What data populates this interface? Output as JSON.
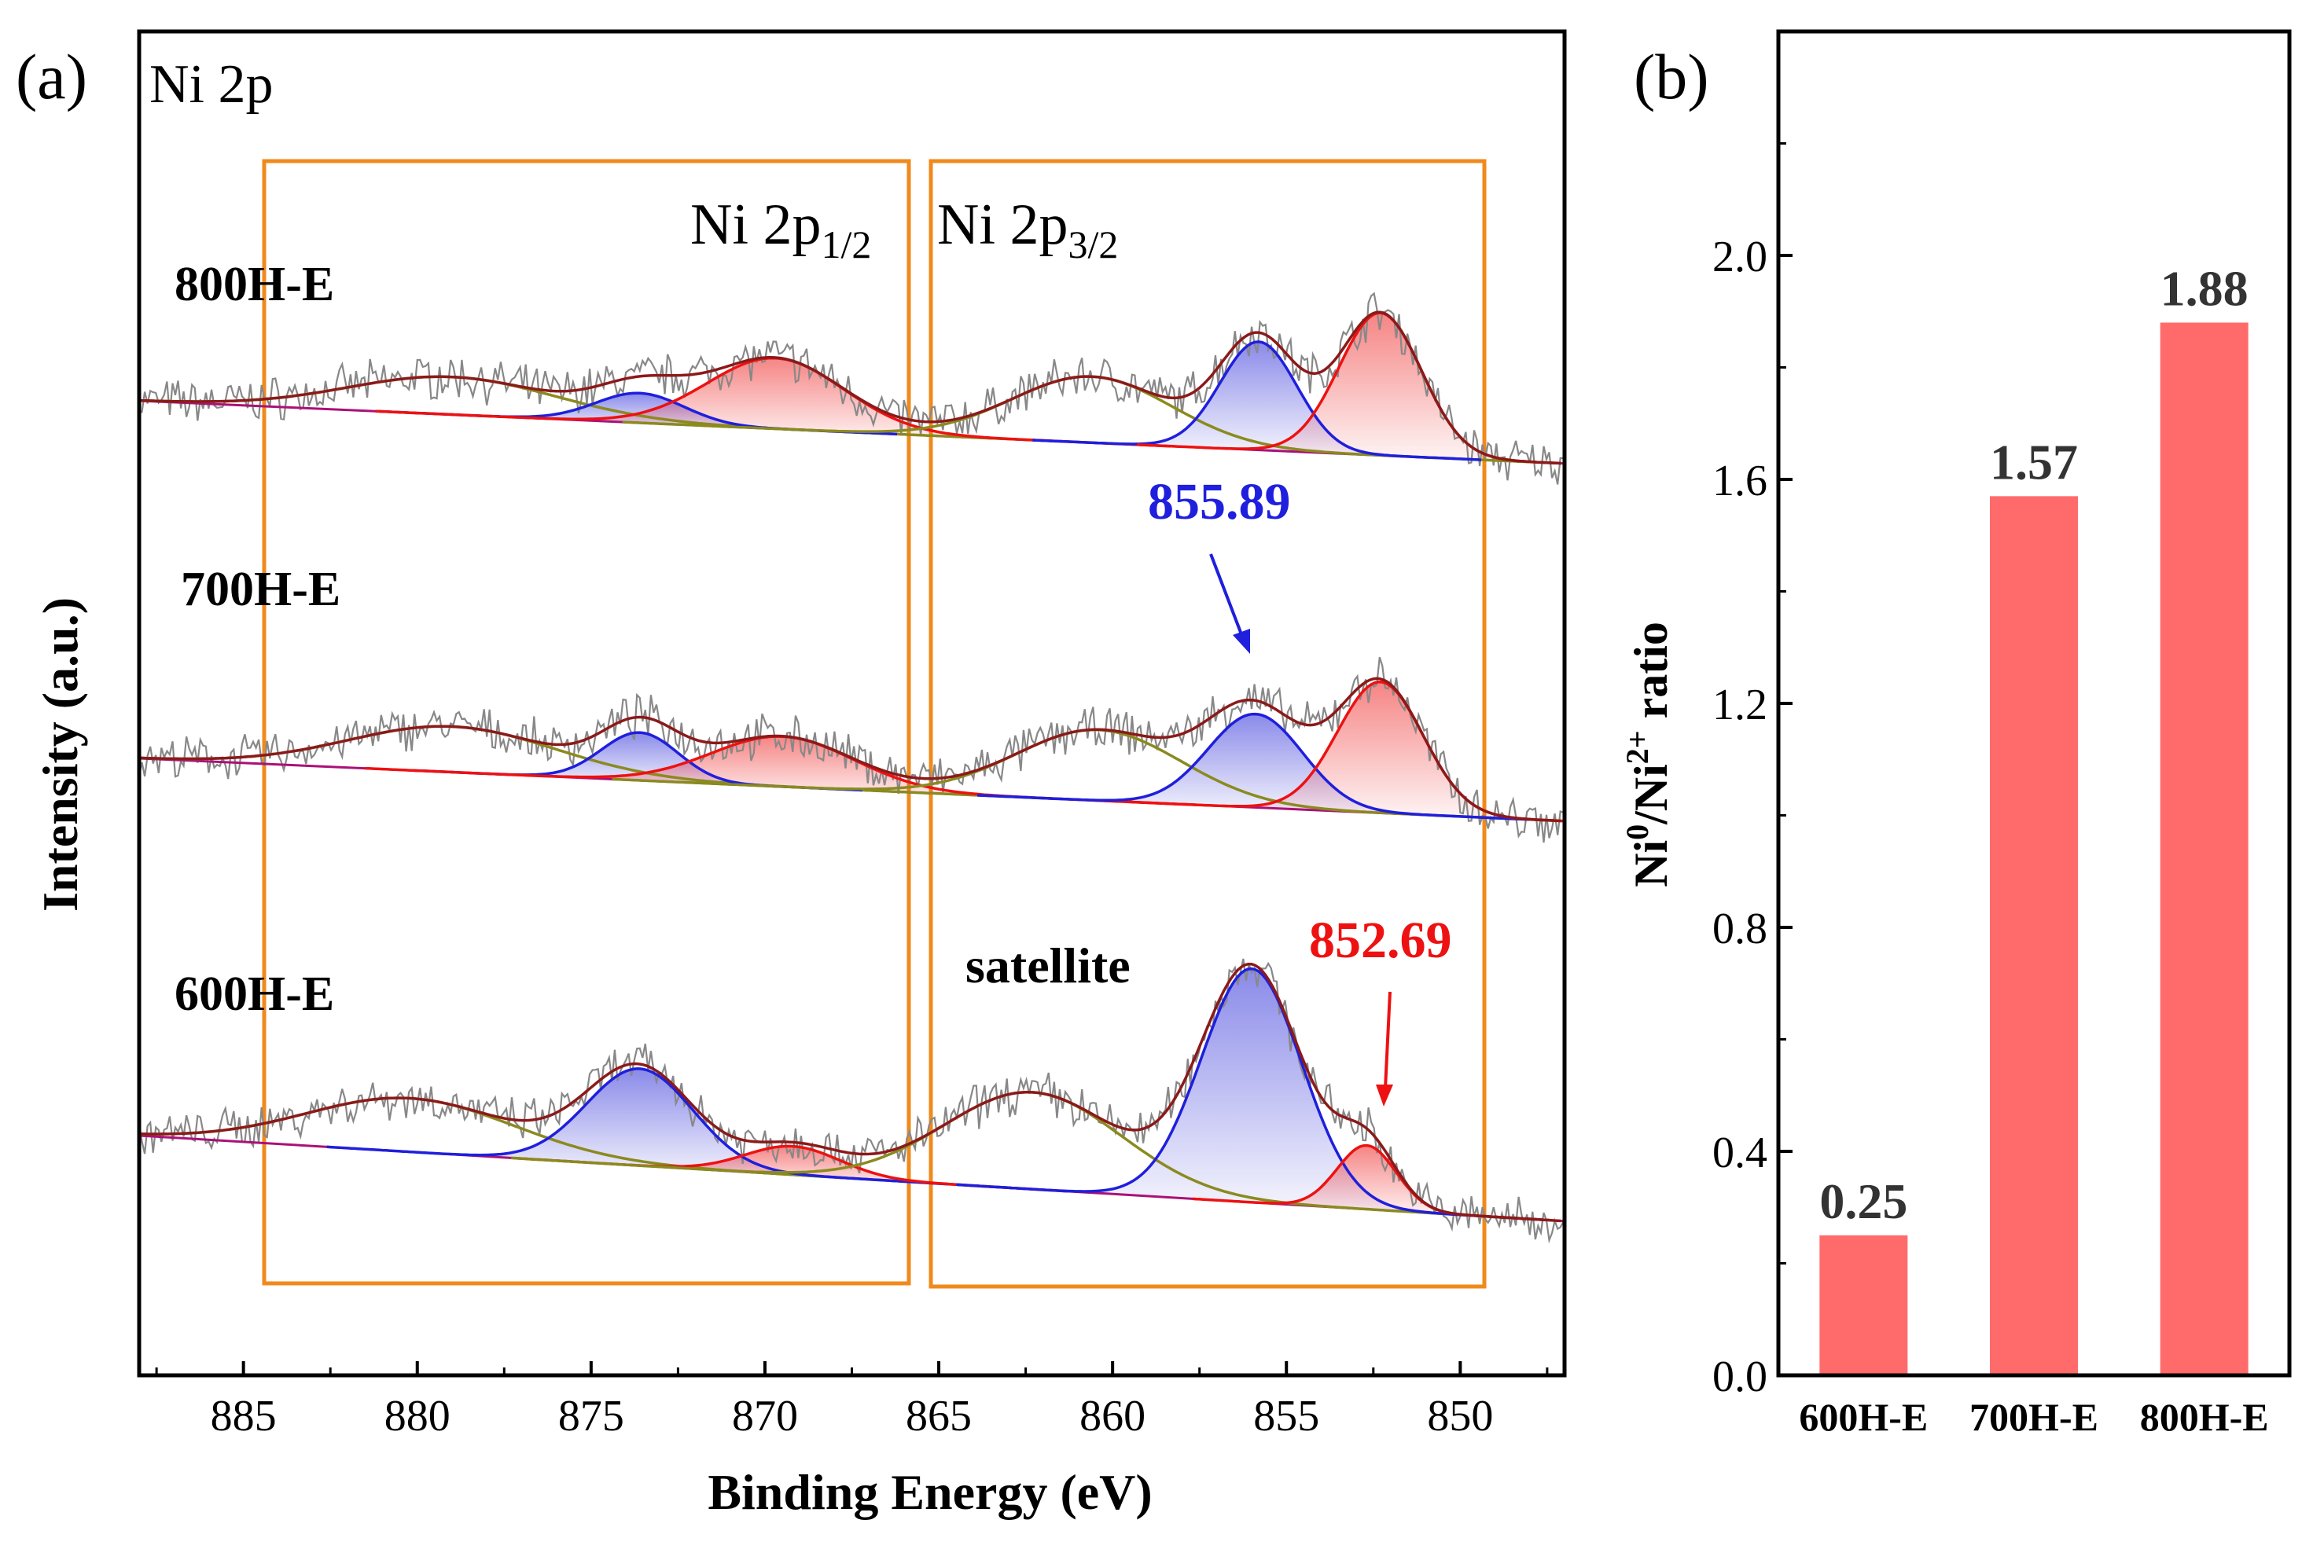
{
  "chart_data": [
    {
      "id": "a",
      "type": "line",
      "panel_label": "(a)",
      "title": "Ni 2p",
      "xlabel": "Binding Energy (eV)",
      "ylabel": "Intensity (a.u.)",
      "xlim": [
        888,
        847
      ],
      "xticks": [
        885,
        880,
        875,
        870,
        865,
        860,
        855,
        850
      ],
      "region_labels": {
        "p12": {
          "main": "Ni 2p",
          "sub": "1/2"
        },
        "p32": {
          "main": "Ni 2p",
          "sub": "3/2"
        }
      },
      "annotations": {
        "satellite": "satellite",
        "peak_ni2": "855.89",
        "peak_ni0": "852.69"
      },
      "colors": {
        "raw": "#888888",
        "envelope": "#8b1a1a",
        "ni2_peak": "#1f1fdd",
        "ni0_peak": "#ee1111",
        "satellite": "#8a8a20",
        "background": "#aa1177",
        "box": "#f08a1c"
      },
      "series": [
        {
          "name": "800H-E",
          "baseline": [
            [
              888,
              0.0
            ],
            [
              847,
              -0.55
            ]
          ],
          "components": [
            {
              "type": "satellite",
              "center": 879.0,
              "height": 0.33,
              "fwhm": 7.0
            },
            {
              "type": "Ni2+",
              "center": 873.6,
              "height": 0.26,
              "fwhm": 3.0
            },
            {
              "type": "Ni0",
              "center": 869.7,
              "height": 0.62,
              "fwhm": 4.6
            },
            {
              "type": "satellite",
              "center": 860.6,
              "height": 0.58,
              "fwhm": 5.4
            },
            {
              "type": "Ni2+",
              "center": 855.8,
              "height": 0.95,
              "fwhm": 2.6
            },
            {
              "type": "Ni0",
              "center": 852.3,
              "height": 1.25,
              "fwhm": 2.8
            }
          ]
        },
        {
          "name": "700H-E",
          "baseline": [
            [
              888,
              0.0
            ],
            [
              847,
              -0.55
            ]
          ],
          "components": [
            {
              "type": "satellite",
              "center": 879.0,
              "height": 0.4,
              "fwhm": 7.0
            },
            {
              "type": "Ni2+",
              "center": 873.6,
              "height": 0.42,
              "fwhm": 2.6
            },
            {
              "type": "Ni0",
              "center": 869.5,
              "height": 0.44,
              "fwhm": 4.8
            },
            {
              "type": "satellite",
              "center": 860.4,
              "height": 0.62,
              "fwhm": 5.6
            },
            {
              "type": "Ni2+",
              "center": 855.89,
              "height": 0.82,
              "fwhm": 3.2
            },
            {
              "type": "Ni0",
              "center": 852.3,
              "height": 1.15,
              "fwhm": 2.9
            }
          ]
        },
        {
          "name": "600H-E",
          "baseline": [
            [
              888,
              0.0
            ],
            [
              847,
              -0.75
            ]
          ],
          "components": [
            {
              "type": "satellite",
              "center": 880.2,
              "height": 0.47,
              "fwhm": 7.0
            },
            {
              "type": "Ni2+",
              "center": 873.6,
              "height": 0.85,
              "fwhm": 3.6
            },
            {
              "type": "Ni0",
              "center": 869.2,
              "height": 0.25,
              "fwhm": 3.2
            },
            {
              "type": "satellite",
              "center": 862.3,
              "height": 0.85,
              "fwhm": 6.0
            },
            {
              "type": "Ni2+",
              "center": 856.0,
              "height": 2.05,
              "fwhm": 3.4
            },
            {
              "type": "Ni0",
              "center": 852.69,
              "height": 0.56,
              "fwhm": 2.0
            }
          ]
        }
      ]
    },
    {
      "id": "b",
      "type": "bar",
      "panel_label": "(b)",
      "categories": [
        "600H-E",
        "700H-E",
        "800H-E"
      ],
      "values": [
        0.25,
        1.57,
        1.88
      ],
      "value_labels": [
        "0.25",
        "1.57",
        "1.88"
      ],
      "ylabel": {
        "p1": "Ni",
        "s1": "0",
        "p2": "/Ni",
        "s2": "2+",
        "p3": " ratio"
      },
      "ylim": [
        0,
        2.4
      ],
      "yticks": [
        "0.0",
        "0.4",
        "0.8",
        "1.2",
        "1.6",
        "2.0"
      ],
      "bar_color": "#ff6b6b"
    }
  ]
}
